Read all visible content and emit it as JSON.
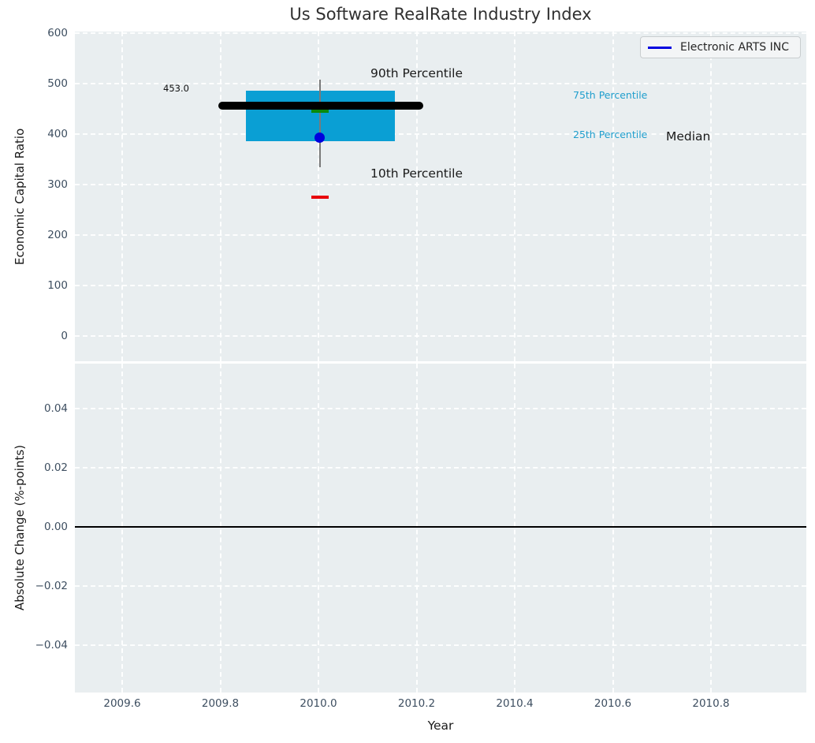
{
  "title": "Us Software RealRate Industry Index",
  "legend": {
    "label": "Electronic ARTS INC",
    "line_color": "#0000e0"
  },
  "colors": {
    "plot_bg": "#e9eef0",
    "grid": "#ffffff",
    "box_fill": "#0a9fd4",
    "median_line": "#000000",
    "whisker": "#7a7a7a",
    "cap_high": "#0a8a0a",
    "cap_low": "#e8000b",
    "marker": "#0000dd",
    "tick_label": "#3d4e60",
    "percentile_text": "#1f9ecd"
  },
  "top_plot": {
    "ylabel": "Economic Capital Ratio",
    "ytick_labels": [
      "600",
      "500",
      "400",
      "300",
      "200",
      "100",
      "0"
    ],
    "annotations": {
      "value_label": "453.0",
      "p90_label": "90th Percentile",
      "p10_label": "10th Percentile",
      "p75_label": "75th Percentile",
      "p25_label": "25th Percentile",
      "median_label": "Median"
    }
  },
  "bottom_plot": {
    "ylabel": "Absolute Change (%-points)",
    "ytick_labels": [
      "0.04",
      "0.02",
      "0.00",
      "−0.02",
      "−0.04"
    ]
  },
  "x_axis": {
    "label": "Year",
    "tick_labels": [
      "2009.6",
      "2009.8",
      "2010.0",
      "2010.2",
      "2010.4",
      "2010.6",
      "2010.8"
    ]
  },
  "chart_data": [
    {
      "type": "box",
      "title": "Us Software RealRate Industry Index",
      "xlabel": "Year",
      "ylabel": "Economic Capital Ratio",
      "x_center": 2010.0,
      "box_x_range": [
        2009.85,
        2010.15
      ],
      "percentiles": {
        "p90": 507,
        "p75": 486,
        "median": 453,
        "p25": 386,
        "p10": 334
      },
      "series": [
        {
          "name": "Electronic ARTS INC",
          "x": [
            2010.0
          ],
          "y": [
            453.0
          ],
          "color": "#0000e0",
          "marker": "point"
        }
      ],
      "annotated_value": 453.0,
      "xlim": [
        2009.5,
        2011.0
      ],
      "ylim": [
        -50,
        605
      ],
      "xticks": [
        2009.6,
        2009.8,
        2010.0,
        2010.2,
        2010.4,
        2010.6,
        2010.8
      ],
      "yticks": [
        0,
        100,
        200,
        300,
        400,
        500,
        600
      ],
      "grid": "white-dashed",
      "legend_position": "upper right"
    },
    {
      "type": "line",
      "xlabel": "Year",
      "ylabel": "Absolute Change (%-points)",
      "series": [
        {
          "name": "zero-baseline",
          "y_constant": 0.0
        }
      ],
      "xlim": [
        2009.5,
        2011.0
      ],
      "ylim": [
        -0.056,
        0.056
      ],
      "yticks": [
        0.04,
        0.02,
        0.0,
        -0.02,
        -0.04
      ],
      "grid": "white-dashed"
    }
  ]
}
